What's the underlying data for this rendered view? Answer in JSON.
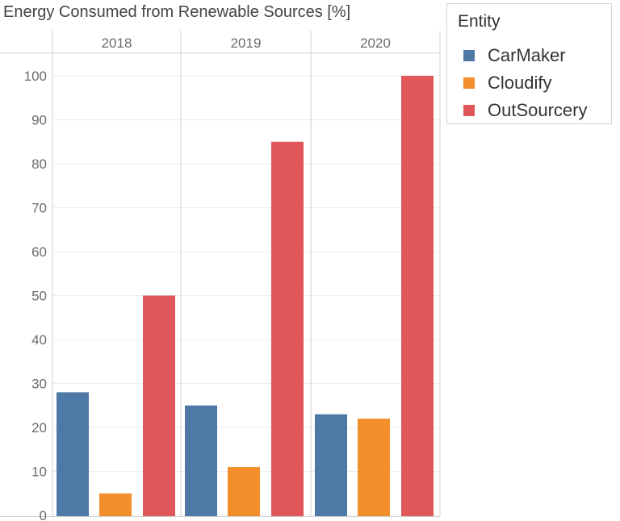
{
  "chart_data": {
    "type": "bar",
    "title": "Energy Consumed from Renewable Sources [%]",
    "categories": [
      "2018",
      "2019",
      "2020"
    ],
    "series": [
      {
        "name": "CarMaker",
        "values": [
          28,
          25,
          23
        ],
        "color": "#4e79a7"
      },
      {
        "name": "Cloudify",
        "values": [
          5,
          11,
          22
        ],
        "color": "#f28e2b"
      },
      {
        "name": "OutSourcery",
        "values": [
          50,
          85,
          100
        ],
        "color": "#e15759"
      }
    ],
    "yticks": [
      "0",
      "10",
      "20",
      "30",
      "40",
      "50",
      "60",
      "70",
      "80",
      "90",
      "100"
    ],
    "ylim": [
      0,
      105
    ],
    "grid": true,
    "legend_title": "Entity",
    "legend_position": "top-right"
  }
}
